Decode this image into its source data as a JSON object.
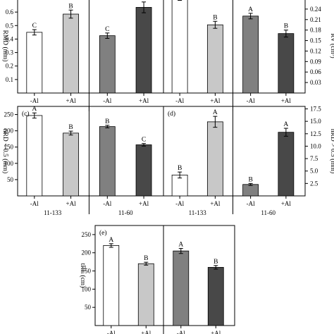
{
  "chart_data": [
    {
      "type": "bar",
      "panel": "",
      "categories": [
        "-Al",
        "+Al",
        "-Al",
        "+Al"
      ],
      "groups": [],
      "values": [
        0.45,
        0.585,
        0.425,
        0.635
      ],
      "errors": [
        0.02,
        0.03,
        0.02,
        0.04
      ],
      "letters": [
        "C",
        "B",
        "C",
        "A"
      ],
      "colors": [
        "#ffffff",
        "#c8c8c8",
        "#808080",
        "#484848"
      ],
      "ylabel": "RMD (mm)",
      "ylim": [
        0,
        0.7
      ],
      "yticks": [
        0.1,
        0.2,
        0.3,
        0.4,
        0.5,
        0.6
      ],
      "ytick_labels": [
        "0.1",
        "0.2",
        "0.3",
        "0.4",
        "0.5",
        "0.6"
      ],
      "axis_side": "left"
    },
    {
      "type": "bar",
      "panel": "",
      "categories": [
        "-Al",
        "+Al",
        "-Al",
        "+Al"
      ],
      "groups": [],
      "values": [
        0.275,
        0.195,
        0.22,
        0.17
      ],
      "errors": [
        0.01,
        0.01,
        0.008,
        0.01
      ],
      "letters": [
        "A",
        "B",
        "A",
        "B"
      ],
      "colors": [
        "#ffffff",
        "#c8c8c8",
        "#808080",
        "#484848"
      ],
      "ylabel": "RV (cm³)",
      "ylim": [
        0,
        0.27
      ],
      "yticks": [
        0.03,
        0.06,
        0.09,
        0.12,
        0.15,
        0.18,
        0.21,
        0.24
      ],
      "ytick_labels": [
        "0.03",
        "0.06",
        "0.09",
        "0.12",
        "0.15",
        "0.18",
        "0.21",
        "0.24"
      ],
      "axis_side": "right"
    },
    {
      "type": "bar",
      "panel": "(c)",
      "categories": [
        "-Al",
        "+Al",
        "-Al",
        "+Al"
      ],
      "groups": [
        "11-133",
        "11-60"
      ],
      "values": [
        247,
        193,
        213,
        157
      ],
      "errors": [
        8,
        6,
        4,
        4
      ],
      "letters": [
        "A",
        "B",
        "B",
        "C"
      ],
      "colors": [
        "#ffffff",
        "#c8c8c8",
        "#808080",
        "#484848"
      ],
      "ylabel": "nRD < 0.5 (mm)",
      "ylim": [
        0,
        275
      ],
      "yticks": [
        50,
        100,
        150,
        200,
        250
      ],
      "ytick_labels": [
        "50",
        "100",
        "150",
        "200",
        "250"
      ],
      "axis_side": "left"
    },
    {
      "type": "bar",
      "panel": "(d)",
      "categories": [
        "-Al",
        "+Al",
        "-Al",
        "+Al"
      ],
      "groups": [
        "11-133",
        "11-60"
      ],
      "values": [
        4.2,
        14.9,
        2.3,
        12.8
      ],
      "errors": [
        0.6,
        1.1,
        0.2,
        0.8
      ],
      "letters": [
        "B",
        "A",
        "B",
        "A"
      ],
      "colors": [
        "#ffffff",
        "#c8c8c8",
        "#808080",
        "#484848"
      ],
      "ylabel": "nRD > 0.5 (mm)",
      "ylim": [
        0,
        18
      ],
      "yticks": [
        2.5,
        5.0,
        7.5,
        10.0,
        12.5,
        15.0,
        17.5
      ],
      "ytick_labels": [
        "2.5",
        "5.0",
        "7.5",
        "10.0",
        "12.5",
        "15.0",
        "17.5"
      ],
      "axis_side": "right"
    },
    {
      "type": "bar",
      "panel": "(e)",
      "categories": [
        "-Al",
        "+Al",
        "-Al",
        "+Al"
      ],
      "groups": [],
      "values": [
        220,
        170,
        205,
        160
      ],
      "errors": [
        5,
        4,
        7,
        5
      ],
      "letters": [
        "A",
        "B",
        "A",
        "B"
      ],
      "colors": [
        "#ffffff",
        "#c8c8c8",
        "#808080",
        "#484848"
      ],
      "ylabel": "tRL (cm)",
      "ylim": [
        0,
        275
      ],
      "yticks": [
        50,
        100,
        150,
        200,
        250
      ],
      "ytick_labels": [
        "50",
        "100",
        "150",
        "200",
        "250"
      ],
      "axis_side": "left"
    }
  ]
}
